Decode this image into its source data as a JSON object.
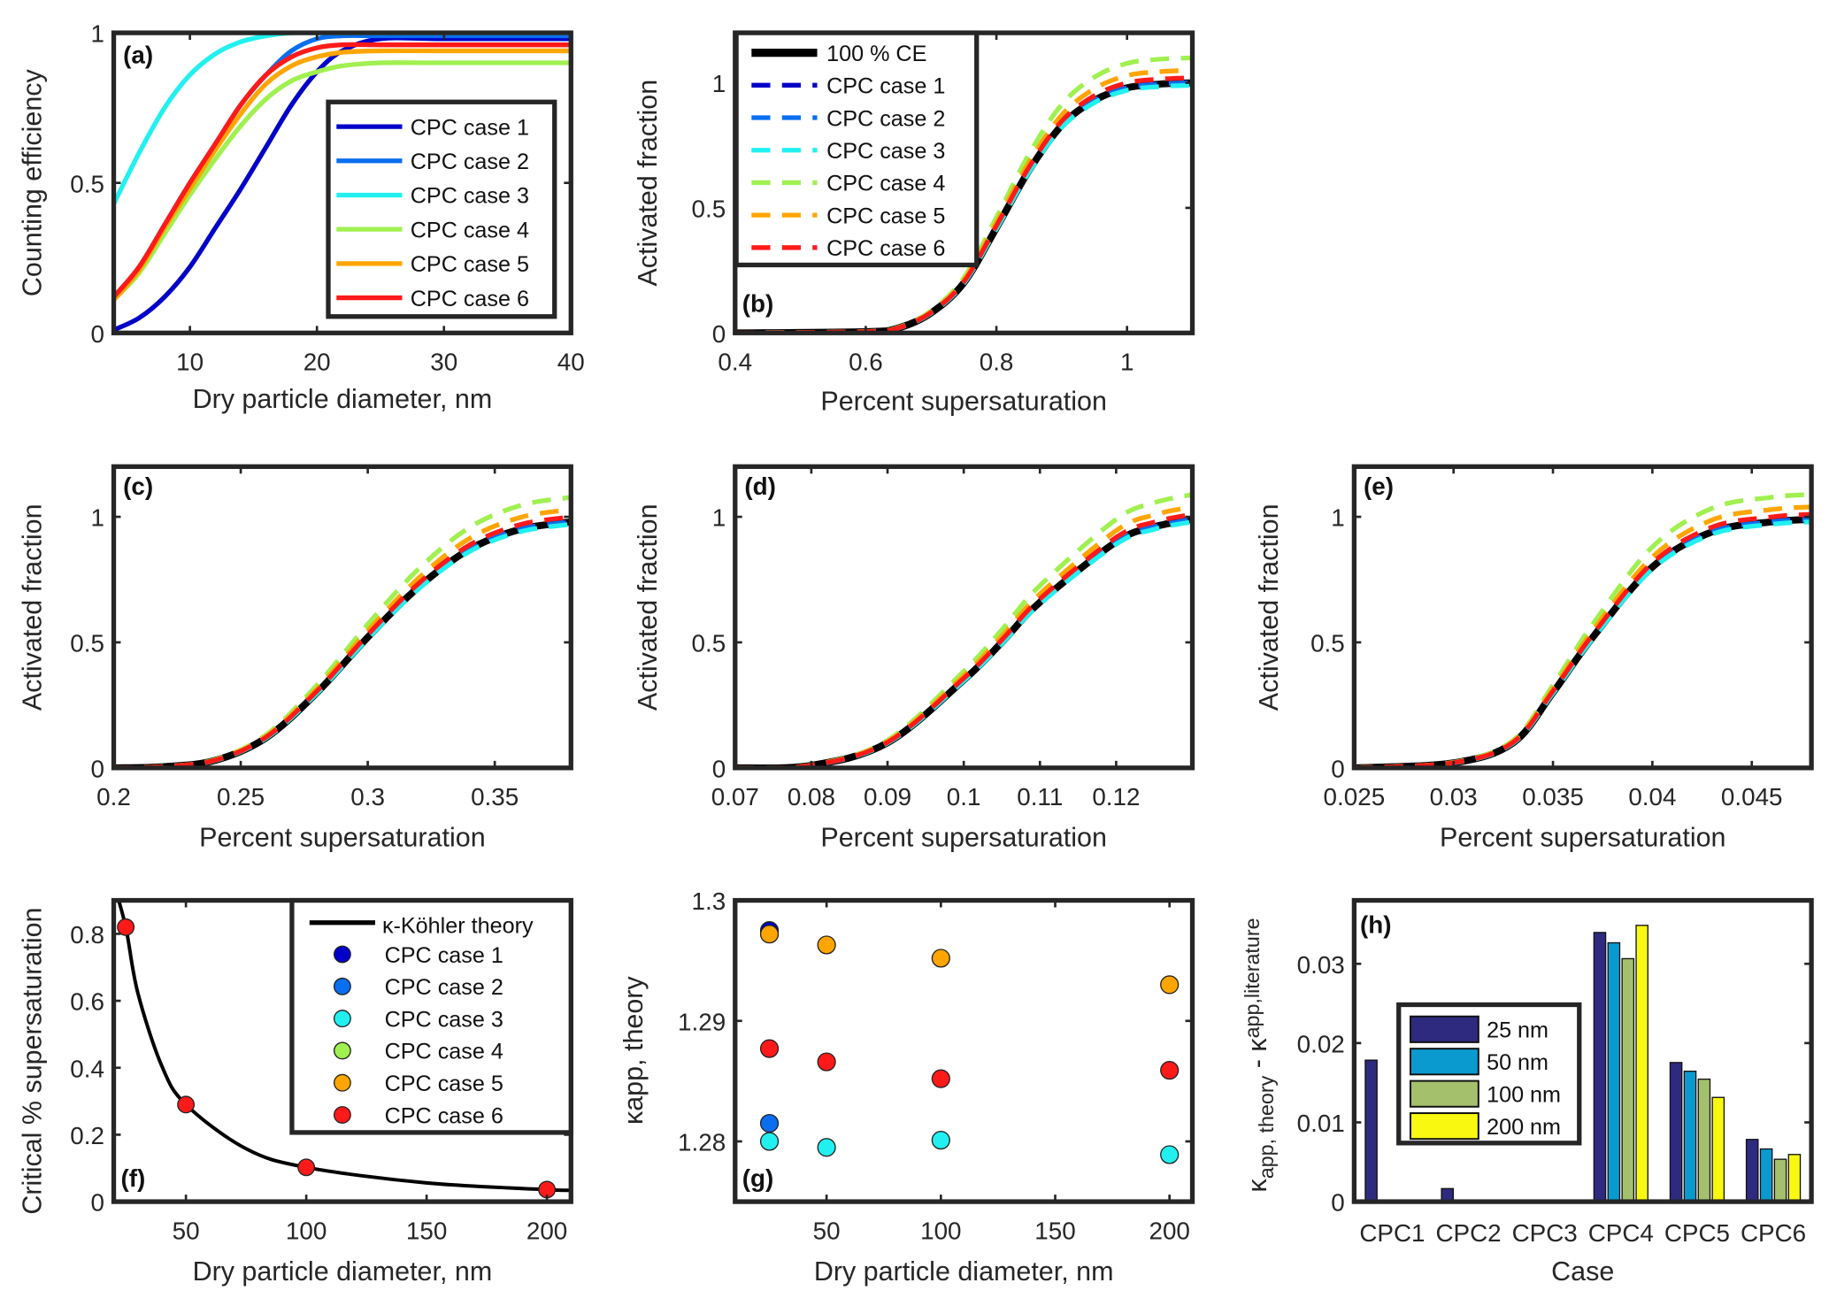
{
  "colors": {
    "case1": "#0000c8",
    "case2": "#0a6ef0",
    "case3": "#22f0f0",
    "case4": "#a0f050",
    "case5": "#ffa500",
    "case6": "#ff1a1a",
    "ce100": "#000000",
    "bar25": "#2e2a80",
    "bar50": "#0a9ad0",
    "bar100": "#a4c06c",
    "bar200": "#f8f810"
  },
  "chart_data": [
    {
      "id": "a",
      "type": "line",
      "panel_label": "(a)",
      "xlabel": "Dry particle diameter, nm",
      "ylabel": "Counting efficiency",
      "xlim": [
        4,
        40
      ],
      "ylim": [
        0,
        1
      ],
      "xticks": [
        10,
        20,
        30,
        40
      ],
      "yticks": [
        0,
        0.5,
        1
      ],
      "ytick_labels": [
        "0",
        "0.5",
        "1"
      ],
      "legend_placement": "center-right",
      "x": [
        4,
        6,
        8,
        10,
        12,
        14,
        16,
        18,
        20,
        22,
        25,
        30,
        40
      ],
      "series": [
        {
          "name": "CPC case 1",
          "color": "case1",
          "values": [
            0.01,
            0.05,
            0.12,
            0.22,
            0.35,
            0.48,
            0.62,
            0.76,
            0.87,
            0.94,
            0.98,
            0.98,
            0.98
          ]
        },
        {
          "name": "CPC case 2",
          "color": "case2",
          "values": [
            0.12,
            0.22,
            0.36,
            0.5,
            0.63,
            0.76,
            0.86,
            0.94,
            0.98,
            0.99,
            0.99,
            0.99,
            0.99
          ]
        },
        {
          "name": "CPC case 3",
          "color": "case3",
          "values": [
            0.43,
            0.6,
            0.75,
            0.86,
            0.93,
            0.97,
            0.99,
            1,
            1,
            1,
            1,
            1,
            1
          ]
        },
        {
          "name": "CPC case 4",
          "color": "case4",
          "values": [
            0.11,
            0.2,
            0.33,
            0.46,
            0.58,
            0.69,
            0.78,
            0.84,
            0.87,
            0.89,
            0.9,
            0.9,
            0.9
          ]
        },
        {
          "name": "CPC case 5",
          "color": "case5",
          "values": [
            0.11,
            0.21,
            0.35,
            0.48,
            0.61,
            0.73,
            0.83,
            0.89,
            0.92,
            0.935,
            0.94,
            0.94,
            0.94
          ]
        },
        {
          "name": "CPC case 6",
          "color": "case6",
          "values": [
            0.12,
            0.22,
            0.36,
            0.5,
            0.63,
            0.76,
            0.86,
            0.92,
            0.95,
            0.96,
            0.96,
            0.96,
            0.96
          ]
        }
      ]
    },
    {
      "id": "b",
      "type": "line",
      "panel_label": "(b)",
      "xlabel": "Percent supersaturation",
      "ylabel": "Activated fraction",
      "xlim": [
        0.4,
        1.1
      ],
      "ylim": [
        0,
        1.2
      ],
      "xticks": [
        0.4,
        0.6,
        0.8,
        1
      ],
      "yticks": [
        0,
        0.5,
        1
      ],
      "ytick_labels": [
        "0",
        "0.5",
        "1"
      ],
      "legend_placement": "top-left",
      "x": [
        0.4,
        0.6,
        0.65,
        0.7,
        0.75,
        0.8,
        0.85,
        0.9,
        0.95,
        1.0,
        1.05,
        1.1
      ],
      "ce100": [
        0,
        0.005,
        0.02,
        0.08,
        0.2,
        0.42,
        0.65,
        0.83,
        0.93,
        0.98,
        0.995,
        1.0
      ],
      "legend": [
        "100 % CE",
        "CPC case 1",
        "CPC case 2",
        "CPC case 3",
        "CPC case 4",
        "CPC case 5",
        "CPC case 6"
      ]
    },
    {
      "id": "c",
      "type": "line",
      "panel_label": "(c)",
      "xlabel": "Percent supersaturation",
      "ylabel": "Activated fraction",
      "xlim": [
        0.2,
        0.38
      ],
      "ylim": [
        0,
        1.2
      ],
      "xticks": [
        0.2,
        0.25,
        0.3,
        0.35
      ],
      "yticks": [
        0,
        0.5,
        1
      ],
      "ytick_labels": [
        "0",
        "0.5",
        "1"
      ],
      "x": [
        0.2,
        0.22,
        0.24,
        0.26,
        0.28,
        0.3,
        0.32,
        0.34,
        0.36,
        0.38
      ],
      "ce100": [
        0,
        0.005,
        0.03,
        0.12,
        0.3,
        0.52,
        0.72,
        0.87,
        0.95,
        0.98
      ]
    },
    {
      "id": "d",
      "type": "line",
      "panel_label": "(d)",
      "xlabel": "Percent supersaturation",
      "ylabel": "Activated fraction",
      "xlim": [
        0.07,
        0.13
      ],
      "ylim": [
        0,
        1.2
      ],
      "xticks": [
        0.07,
        0.08,
        0.09,
        0.1,
        0.11,
        0.12
      ],
      "yticks": [
        0,
        0.5,
        1
      ],
      "ytick_labels": [
        "0",
        "0.5",
        "1"
      ],
      "x": [
        0.07,
        0.08,
        0.09,
        0.1,
        0.105,
        0.11,
        0.12,
        0.125,
        0.13
      ],
      "ce100": [
        0,
        0.01,
        0.1,
        0.35,
        0.5,
        0.66,
        0.9,
        0.96,
        0.99
      ]
    },
    {
      "id": "e",
      "type": "line",
      "panel_label": "(e)",
      "xlabel": "Percent supersaturation",
      "ylabel": "Activated fraction",
      "xlim": [
        0.025,
        0.048
      ],
      "ylim": [
        0,
        1.2
      ],
      "xticks": [
        0.025,
        0.03,
        0.035,
        0.04,
        0.045
      ],
      "yticks": [
        0,
        0.5,
        1
      ],
      "ytick_labels": [
        "0",
        "0.5",
        "1"
      ],
      "x": [
        0.025,
        0.03,
        0.033,
        0.035,
        0.037,
        0.04,
        0.043,
        0.046,
        0.048
      ],
      "ce100": [
        0,
        0.02,
        0.1,
        0.3,
        0.52,
        0.8,
        0.94,
        0.98,
        0.99
      ]
    },
    {
      "id": "f",
      "type": "scatter",
      "panel_label": "(f)",
      "xlabel": "Dry particle diameter, nm",
      "ylabel": "Critical % supersaturation",
      "xlim": [
        20,
        210
      ],
      "ylim": [
        0,
        0.9
      ],
      "xticks": [
        50,
        100,
        150,
        200
      ],
      "yticks": [
        0,
        0.2,
        0.4,
        0.6,
        0.8
      ],
      "ytick_labels": [
        "0",
        "0.2",
        "0.4",
        "0.6",
        "0.8"
      ],
      "legend_placement": "top-right",
      "theory": {
        "name": "κ-Köhler theory",
        "x": [
          20,
          25,
          30,
          40,
          50,
          75,
          100,
          150,
          200,
          210
        ],
        "y": [
          0.95,
          0.82,
          0.624,
          0.405,
          0.29,
          0.158,
          0.1025,
          0.056,
          0.036,
          0.034
        ]
      },
      "points": {
        "x": [
          25,
          50,
          100,
          200
        ],
        "y": [
          0.82,
          0.29,
          0.1025,
          0.036
        ]
      },
      "legend": [
        "CPC case 1",
        "CPC case 2",
        "CPC case 3",
        "CPC case 4",
        "CPC case 5",
        "CPC case 6"
      ]
    },
    {
      "id": "g",
      "type": "scatter",
      "panel_label": "(g)",
      "xlabel": "Dry particle diameter, nm",
      "ylabel": "κapp, theory",
      "xlim": [
        10,
        210
      ],
      "ylim": [
        1.275,
        1.3
      ],
      "xticks": [
        50,
        100,
        150,
        200
      ],
      "yticks": [
        1.28,
        1.29,
        1.3
      ],
      "ytick_labels": [
        "1.28",
        "1.29",
        "1.3"
      ],
      "series": [
        {
          "name": "CPC case 1",
          "color": "case1",
          "x": [
            25
          ],
          "y": [
            1.2975
          ]
        },
        {
          "name": "CPC case 2",
          "color": "case2",
          "x": [
            25
          ],
          "y": [
            1.2815
          ]
        },
        {
          "name": "CPC case 3",
          "color": "case3",
          "x": [
            25,
            50,
            100,
            200
          ],
          "y": [
            1.28,
            1.2795,
            1.2801,
            1.2789
          ]
        },
        {
          "name": "CPC case 6",
          "color": "case6",
          "x": [
            25,
            50,
            100,
            200
          ],
          "y": [
            1.2877,
            1.2866,
            1.2852,
            1.2859
          ]
        },
        {
          "name": "CPC case 5",
          "color": "case5",
          "x": [
            25,
            50,
            100,
            200
          ],
          "y": [
            1.2972,
            1.2963,
            1.2952,
            1.293
          ]
        }
      ]
    },
    {
      "id": "h",
      "type": "bar",
      "panel_label": "(h)",
      "xlabel": "Case",
      "ylabel_parts": [
        "κ",
        "app, theory",
        " - κ",
        "app,literature"
      ],
      "categories": [
        "CPC1",
        "CPC2",
        "CPC3",
        "CPC4",
        "CPC5",
        "CPC6"
      ],
      "ylim": [
        0,
        0.038
      ],
      "yticks": [
        0,
        0.01,
        0.02,
        0.03
      ],
      "ytick_labels": [
        "0",
        "0.01",
        "0.02",
        "0.03"
      ],
      "legend_placement": "center-left",
      "series": [
        {
          "name": "25 nm",
          "color": "bar25",
          "values": [
            0.0177,
            0.0015,
            0,
            0.0338,
            0.0174,
            0.0077
          ]
        },
        {
          "name": "50 nm",
          "color": "bar50",
          "values": [
            0,
            0,
            0,
            0.0325,
            0.0163,
            0.0065
          ]
        },
        {
          "name": "100 nm",
          "color": "bar100",
          "values": [
            0,
            0,
            0,
            0.0305,
            0.0153,
            0.0052
          ]
        },
        {
          "name": "200 nm",
          "color": "bar200",
          "values": [
            0,
            0,
            0,
            0.0347,
            0.013,
            0.0058
          ]
        }
      ]
    }
  ],
  "case_plateau": {
    "CPC case 1": 1.0,
    "CPC case 2": 1.0,
    "CPC case 3": 0.99,
    "CPC case 4": 1.1,
    "CPC case 5": 1.05,
    "CPC case 6": 1.02
  },
  "case_names": [
    "CPC case 1",
    "CPC case 2",
    "CPC case 3",
    "CPC case 4",
    "CPC case 5",
    "CPC case 6"
  ]
}
